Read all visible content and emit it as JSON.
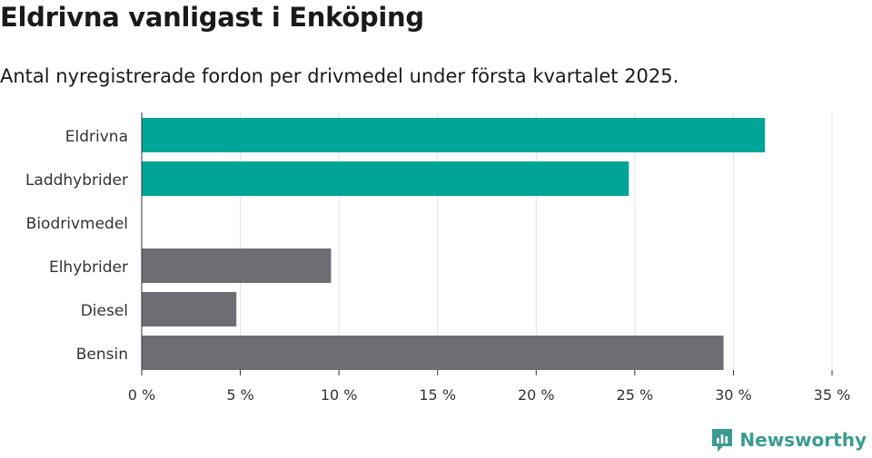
{
  "header": {
    "title": "Eldrivna vanligast i Enköping",
    "subtitle": "Antal nyregistrerade fordon per drivmedel under första kvartalet 2025."
  },
  "brand": {
    "name": "Newsworthy",
    "icon": "newsworthy-logo-icon",
    "color": "#3a9b90"
  },
  "chart_data": {
    "type": "bar",
    "orientation": "horizontal",
    "title": "Eldrivna vanligast i Enköping",
    "subtitle": "Antal nyregistrerade fordon per drivmedel under första kvartalet 2025.",
    "categories": [
      "Eldrivna",
      "Laddhybrider",
      "Biodrivmedel",
      "Elhybrider",
      "Diesel",
      "Bensin"
    ],
    "values": [
      31.6,
      24.7,
      0,
      9.6,
      4.8,
      29.5
    ],
    "colors": [
      "#00a598",
      "#00a598",
      "#6e6d74",
      "#6e6d74",
      "#6e6d74",
      "#6e6d74"
    ],
    "xlim": [
      0,
      35
    ],
    "xticks": [
      0,
      5,
      10,
      15,
      20,
      25,
      30,
      35
    ],
    "tick_labels": [
      "0 %",
      "5 %",
      "10 %",
      "15 %",
      "20 %",
      "25 %",
      "30 %",
      "35 %"
    ],
    "grid": true
  }
}
